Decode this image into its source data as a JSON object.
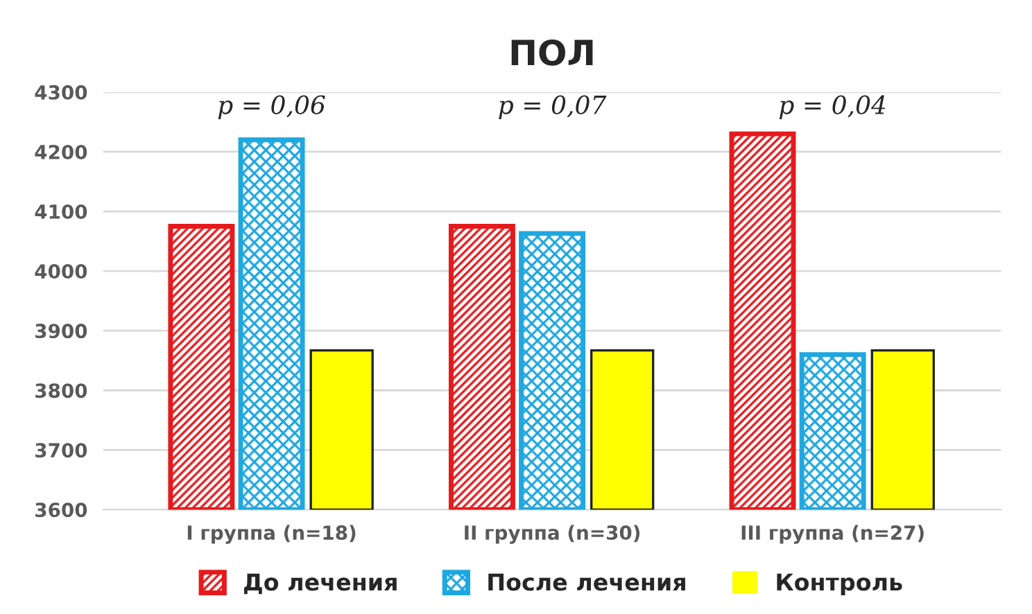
{
  "chart_data": {
    "type": "bar",
    "title": "ПОЛ",
    "categories": [
      "I группа (n=18)",
      "II группа (n=30)",
      "III группа (n=27)"
    ],
    "series": [
      {
        "name": "До лечения",
        "color": "#e41a1c",
        "values": [
          4075,
          4075,
          4230
        ]
      },
      {
        "name": "После лечения",
        "color": "#1fa7e0",
        "values": [
          4220,
          4063,
          3860
        ]
      },
      {
        "name": "Контроль",
        "color": "#ffff00",
        "values": [
          3867,
          3867,
          3867
        ]
      }
    ],
    "ylim": [
      3600,
      4300
    ],
    "yticks": [
      3600,
      3700,
      3800,
      3900,
      4000,
      4100,
      4200,
      4300
    ],
    "annotations": [
      "p = 0,06",
      "p = 0,07",
      "p = 0,04"
    ],
    "grid": "y",
    "legend": "bottom"
  }
}
